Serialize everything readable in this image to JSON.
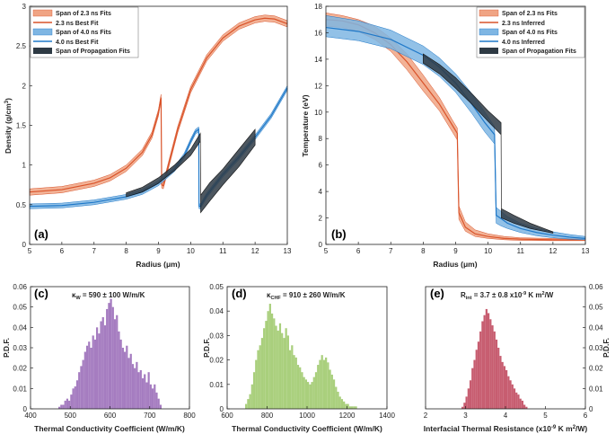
{
  "colors": {
    "orange_band": "#f0a484",
    "orange_line": "#d9532a",
    "blue_band": "#7fb6e3",
    "blue_line": "#1f78c8",
    "black_band": "#2e3a44",
    "purple": "#a57cc0",
    "green": "#a9cf7c",
    "red": "#c75d70"
  },
  "chart_data": [
    {
      "id": "a",
      "type": "line",
      "panel_label": "(a)",
      "xlabel": "Radius (μm)",
      "ylabel": "Density (g/cm3)",
      "xlim": [
        5,
        13
      ],
      "ylim": [
        0,
        3
      ],
      "xticks": [
        5,
        6,
        7,
        8,
        9,
        10,
        11,
        12,
        13
      ],
      "yticks": [
        0,
        0.5,
        1,
        1.5,
        2,
        2.5,
        3
      ],
      "legend": [
        "Span of 2.3 ns Fits",
        "2.3 ns Best Fit",
        "Span of 4.0 ns Fits",
        "4.0 ns Best Fit",
        "Span of Propagation Fits"
      ],
      "series": [
        {
          "name": "2.3 ns Best Fit",
          "color_key": "orange",
          "halfwidth": 0.04,
          "x": [
            5,
            6,
            7,
            7.5,
            8,
            8.5,
            8.8,
            9.0,
            9.08,
            9.1,
            9.15,
            9.3,
            9.6,
            10,
            10.5,
            11,
            11.5,
            12,
            12.3,
            12.6,
            13
          ],
          "y": [
            0.66,
            0.69,
            0.77,
            0.84,
            0.96,
            1.16,
            1.38,
            1.66,
            1.85,
            0.75,
            0.74,
            0.98,
            1.45,
            1.95,
            2.35,
            2.6,
            2.75,
            2.83,
            2.85,
            2.84,
            2.78
          ]
        },
        {
          "name": "4.0 ns Best Fit",
          "color_key": "blue",
          "halfwidth": 0.03,
          "x": [
            5,
            6,
            7,
            8,
            8.5,
            9,
            9.5,
            9.8,
            10.0,
            10.15,
            10.25,
            10.26,
            10.3,
            10.5,
            11,
            11.5,
            12,
            12.5,
            13
          ],
          "y": [
            0.48,
            0.49,
            0.53,
            0.6,
            0.66,
            0.77,
            0.95,
            1.12,
            1.3,
            1.42,
            1.45,
            0.48,
            0.48,
            0.62,
            0.88,
            1.1,
            1.35,
            1.62,
            1.97
          ]
        },
        {
          "name": "Span of Propagation Fits",
          "color_key": "black",
          "upper": {
            "x": [
              8,
              8.5,
              9,
              9.5,
              10,
              10.3,
              10.31,
              10.6,
              11,
              11.5,
              12
            ],
            "y": [
              0.65,
              0.72,
              0.84,
              1.0,
              1.2,
              1.4,
              0.62,
              0.78,
              0.95,
              1.2,
              1.45
            ]
          },
          "lower": {
            "x": [
              8,
              8.5,
              9,
              9.5,
              10,
              10.3,
              10.31,
              10.6,
              11,
              11.5,
              12
            ],
            "y": [
              0.6,
              0.66,
              0.77,
              0.93,
              1.12,
              1.3,
              0.4,
              0.55,
              0.75,
              0.98,
              1.25
            ]
          }
        }
      ]
    },
    {
      "id": "b",
      "type": "line",
      "panel_label": "(b)",
      "xlabel": "Radius (μm)",
      "ylabel": "Temperature (eV)",
      "xlim": [
        5,
        13
      ],
      "ylim": [
        0,
        18
      ],
      "xticks": [
        5,
        6,
        7,
        8,
        9,
        10,
        11,
        12,
        13
      ],
      "yticks": [
        0,
        2,
        4,
        6,
        8,
        10,
        12,
        14,
        16,
        18
      ],
      "legend": [
        "Span of 2.3 ns Fits",
        "2.3 ns Inferred",
        "Span of 4.0 ns Fits",
        "4.0 ns Inferred",
        "Span of Propagation Fits"
      ],
      "series": [
        {
          "name": "2.3 ns Inferred",
          "color_key": "orange",
          "x": [
            5,
            5.5,
            6,
            6.5,
            7,
            7.5,
            8,
            8.5,
            8.9,
            9.05,
            9.1,
            9.3,
            9.6,
            10,
            10.5,
            11,
            12,
            13
          ],
          "y": [
            17.0,
            16.9,
            16.6,
            16.0,
            15.1,
            13.8,
            12.2,
            10.6,
            9.0,
            8.4,
            2.4,
            1.3,
            0.8,
            0.6,
            0.45,
            0.4,
            0.35,
            0.35
          ],
          "upper": [
            17.5,
            17.3,
            17.0,
            16.5,
            15.6,
            14.4,
            12.8,
            11.1,
            9.4,
            8.8,
            2.9,
            1.7,
            1.1,
            0.8,
            0.6,
            0.5,
            0.45,
            0.45
          ],
          "lower": [
            16.5,
            16.4,
            16.1,
            15.5,
            14.6,
            13.2,
            11.6,
            10.1,
            8.5,
            7.9,
            1.9,
            1.0,
            0.6,
            0.45,
            0.35,
            0.3,
            0.28,
            0.28
          ]
        },
        {
          "name": "4.0 ns Inferred",
          "color_key": "blue",
          "x": [
            5,
            6,
            7,
            8,
            8.5,
            9,
            9.5,
            9.9,
            10.2,
            10.25,
            10.4,
            10.6,
            11,
            11.5,
            12,
            12.5,
            13
          ],
          "y": [
            16.4,
            16.1,
            15.5,
            14.3,
            13.4,
            12.2,
            10.6,
            9.2,
            8.3,
            2.2,
            1.95,
            1.6,
            1.2,
            0.9,
            0.7,
            0.55,
            0.45
          ],
          "upper": [
            17.3,
            16.9,
            16.2,
            15.0,
            14.1,
            12.9,
            11.4,
            10.0,
            8.9,
            2.8,
            2.5,
            2.1,
            1.6,
            1.2,
            0.95,
            0.75,
            0.6
          ],
          "lower": [
            15.7,
            15.4,
            14.8,
            13.6,
            12.7,
            11.5,
            9.9,
            8.5,
            7.6,
            1.6,
            1.4,
            1.2,
            0.9,
            0.65,
            0.5,
            0.4,
            0.35
          ]
        },
        {
          "name": "Span of Propagation Fits",
          "color_key": "black",
          "upper": {
            "x": [
              8,
              8.5,
              9,
              9.5,
              10,
              10.4,
              10.41,
              10.8,
              11.3,
              12
            ],
            "y": [
              14.4,
              13.6,
              12.6,
              11.4,
              10.1,
              9.2,
              2.7,
              2.2,
              1.6,
              0.95
            ]
          },
          "lower": {
            "x": [
              8,
              8.5,
              9,
              9.5,
              10,
              10.4,
              10.41,
              10.8,
              11.3,
              12
            ],
            "y": [
              13.7,
              12.9,
              11.8,
              10.6,
              9.3,
              8.3,
              2.0,
              1.6,
              1.2,
              0.85
            ]
          }
        }
      ]
    },
    {
      "id": "c",
      "type": "histogram",
      "panel_label": "(c)",
      "annotation": "κW = 590 ± 100 W/m/K",
      "xlabel": "Thermal Conductivity Coefficient (W/m/K)",
      "ylabel": "P.D.F.",
      "color_key": "purple",
      "xlim": [
        400,
        800
      ],
      "ylim": [
        0,
        0.06
      ],
      "xticks": [
        400,
        500,
        600,
        700,
        800
      ],
      "yticks": [
        0,
        0.01,
        0.02,
        0.03,
        0.04,
        0.05,
        0.06
      ],
      "bin_start": 470,
      "bin_width": 5,
      "values": [
        0.001,
        0.002,
        0.002,
        0.004,
        0.005,
        0.004,
        0.007,
        0.01,
        0.011,
        0.014,
        0.018,
        0.021,
        0.024,
        0.028,
        0.031,
        0.033,
        0.03,
        0.036,
        0.034,
        0.04,
        0.037,
        0.043,
        0.045,
        0.041,
        0.049,
        0.052,
        0.054,
        0.05,
        0.044,
        0.046,
        0.038,
        0.034,
        0.03,
        0.028,
        0.031,
        0.025,
        0.027,
        0.022,
        0.02,
        0.023,
        0.018,
        0.019,
        0.015,
        0.017,
        0.013,
        0.018,
        0.012,
        0.01,
        0.012,
        0.008,
        0.005,
        0.002
      ]
    },
    {
      "id": "d",
      "type": "histogram",
      "panel_label": "(d)",
      "annotation": "κCHF = 910 ± 260 W/m/K",
      "xlabel": "Thermal Conductivity Coefficient (W/m/K)",
      "ylabel": "P.D.F.",
      "color_key": "green",
      "xlim": [
        600,
        1400
      ],
      "ylim": [
        0,
        0.05
      ],
      "xticks": [
        600,
        800,
        1000,
        1200,
        1400
      ],
      "yticks": [
        0,
        0.01,
        0.02,
        0.03,
        0.04,
        0.05
      ],
      "bin_start": 690,
      "bin_width": 10,
      "values": [
        0.002,
        0.004,
        0.006,
        0.01,
        0.015,
        0.02,
        0.024,
        0.026,
        0.029,
        0.033,
        0.036,
        0.04,
        0.043,
        0.039,
        0.037,
        0.034,
        0.032,
        0.035,
        0.031,
        0.029,
        0.033,
        0.03,
        0.024,
        0.026,
        0.022,
        0.021,
        0.018,
        0.017,
        0.015,
        0.013,
        0.012,
        0.011,
        0.01,
        0.011,
        0.013,
        0.015,
        0.018,
        0.02,
        0.022,
        0.02,
        0.021,
        0.019,
        0.016,
        0.014,
        0.012,
        0.009,
        0.007,
        0.005,
        0.004,
        0.003,
        0.002,
        0.002,
        0.001,
        0.001,
        0.001,
        0.001
      ]
    },
    {
      "id": "e",
      "type": "histogram",
      "panel_label": "(e)",
      "annotation": "Rint = 3.7 ± 0.8 x10-9 K m2/W",
      "xlabel": "Interfacial Thermal Resistance (x10-9 K m2/W)",
      "ylabel": "P.D.F.",
      "y_axis_side": "right",
      "color_key": "red",
      "xlim": [
        2,
        6
      ],
      "ylim": [
        0,
        0.06
      ],
      "xticks": [
        2,
        3,
        4,
        5,
        6
      ],
      "yticks": [
        0,
        0.01,
        0.02,
        0.03,
        0.04,
        0.05,
        0.06
      ],
      "bin_start": 2.9,
      "bin_width": 0.05,
      "values": [
        0.001,
        0.003,
        0.006,
        0.01,
        0.014,
        0.02,
        0.024,
        0.029,
        0.033,
        0.038,
        0.043,
        0.046,
        0.049,
        0.047,
        0.044,
        0.041,
        0.038,
        0.034,
        0.03,
        0.026,
        0.023,
        0.021,
        0.019,
        0.016,
        0.014,
        0.012,
        0.01,
        0.008,
        0.007,
        0.005,
        0.004,
        0.002,
        0.001
      ]
    }
  ],
  "text": {
    "a": {
      "ylab_main": "Density (g/cm",
      "ylab_sup": "3",
      "ylab_end": ")",
      "xlab_main": "Radius (",
      "xlab_mu": "μm",
      "xlab_end": ")",
      "legend": [
        "Span of 2.3 ns Fits",
        "2.3 ns Best Fit",
        "Span of 4.0 ns Fits",
        "4.0 ns Best Fit",
        "Span of Propagation Fits"
      ]
    },
    "b": {
      "ylab": "Temperature (eV)",
      "xlab_main": "Radius (",
      "xlab_mu": "μm",
      "xlab_end": ")",
      "legend": [
        "Span of 2.3 ns Fits",
        "2.3 ns Inferred",
        "Span of 4.0 ns Fits",
        "4.0 ns Inferred",
        "Span of Propagation Fits"
      ]
    },
    "c": {
      "kappa": "κ",
      "sub": "W",
      "rest": " = 590 ± 100 W/m/K",
      "xlab": "Thermal Conductivity Coefficient (W/m/K)",
      "ylab": "P.D.F."
    },
    "d": {
      "kappa": "κ",
      "sub": "CHF",
      "rest": " = 910 ± 260 W/m/K",
      "xlab": "Thermal Conductivity Coefficient (W/m/K)",
      "ylab": "P.D.F."
    },
    "e": {
      "r": "R",
      "sub": "int",
      "rest1": " = 3.7 ± 0.8 x10",
      "sup1": "-9",
      "rest2": " K m",
      "sup2": "2",
      "rest3": "/W",
      "xlab1": "Interfacial Thermal Resistance (x10",
      "xsup1": "-9",
      "xlab2": " K m",
      "xsup2": "2",
      "xlab3": "/W)",
      "ylab": "P.D.F."
    }
  }
}
